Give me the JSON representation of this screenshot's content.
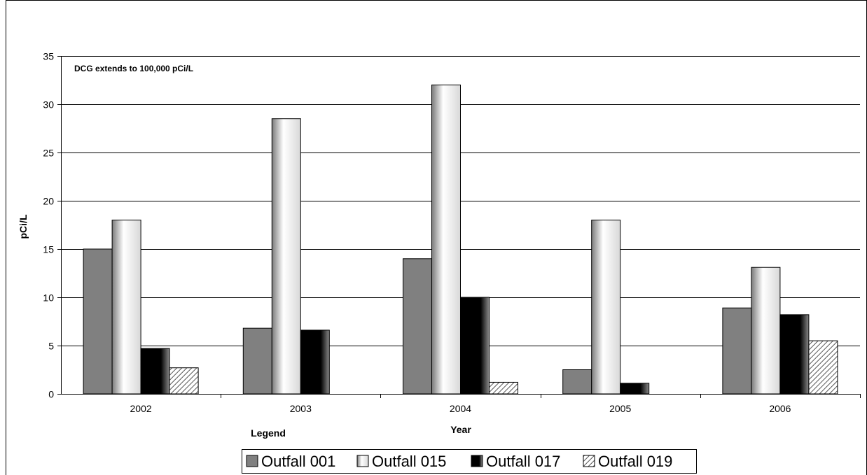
{
  "chart_data": {
    "type": "bar",
    "title": "",
    "xlabel": "Year",
    "ylabel": "pCi/L",
    "annotation": "DCG extends to 100,000 pCi/L",
    "legend_title": "Legend",
    "legend_position": "bottom",
    "categories": [
      "2002",
      "2003",
      "2004",
      "2005",
      "2006"
    ],
    "ylim": [
      0,
      35
    ],
    "yticks": [
      "0",
      "5",
      "10",
      "15",
      "20",
      "25",
      "30",
      "35"
    ],
    "grid": true,
    "series": [
      {
        "name": "Outfall 001",
        "values": [
          15,
          6.8,
          14,
          2.5,
          8.9
        ]
      },
      {
        "name": "Outfall 015",
        "values": [
          18,
          28.5,
          32,
          18,
          13.1
        ]
      },
      {
        "name": "Outfall 017",
        "values": [
          4.7,
          6.6,
          10,
          1.1,
          8.2
        ]
      },
      {
        "name": "Outfall 019",
        "values": [
          2.7,
          0,
          1.2,
          0,
          5.5
        ]
      }
    ],
    "colors": {
      "Outfall 001": "#808080",
      "Outfall 015": "#e0e0e0",
      "Outfall 017": "#000000",
      "Outfall 019": "#ffffff"
    }
  }
}
